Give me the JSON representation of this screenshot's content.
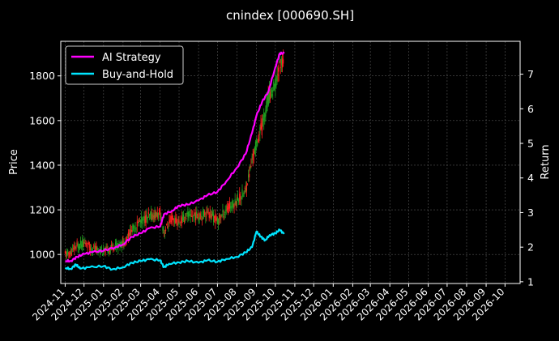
{
  "chart_data": {
    "type": "line",
    "title": "cnindex [000690.SH]",
    "ylabel": "Price",
    "y2label": "Return",
    "ylim": [
      870,
      1955
    ],
    "y2lim": [
      0.95,
      7.95
    ],
    "yticks": [
      1000,
      1200,
      1400,
      1600,
      1800
    ],
    "y2ticks": [
      1,
      2,
      3,
      4,
      5,
      6,
      7
    ],
    "xticks": [
      "2024-11",
      "2024-12",
      "2025-01",
      "2025-02",
      "2025-03",
      "2025-04",
      "2025-05",
      "2025-06",
      "2025-07",
      "2025-08",
      "2025-09",
      "2025-10",
      "2025-11",
      "2025-12",
      "2026-01",
      "2026-02",
      "2026-03",
      "2026-04",
      "2026-05",
      "2026-06",
      "2026-07",
      "2026-08",
      "2026-09",
      "2026-10"
    ],
    "xlim": [
      "2024-10-25",
      "2026-10-25"
    ],
    "grid": true,
    "legend_position": "top-left",
    "colors": {
      "background": "#000000",
      "strategy": "#ff00ff",
      "buyhold": "#00e5ff",
      "candle_up": "#ff2020",
      "candle_down": "#1fa01f",
      "grid": "#555555"
    },
    "series": [
      {
        "name": "AI Strategy",
        "axis": "return",
        "points": [
          [
            "2024-11-01",
            1.6
          ],
          [
            "2024-11-10",
            1.6
          ],
          [
            "2024-11-20",
            1.72
          ],
          [
            "2024-12-01",
            1.8
          ],
          [
            "2024-12-15",
            1.86
          ],
          [
            "2025-01-01",
            1.9
          ],
          [
            "2025-01-20",
            2.0
          ],
          [
            "2025-02-01",
            2.08
          ],
          [
            "2025-02-15",
            2.3
          ],
          [
            "2025-03-01",
            2.4
          ],
          [
            "2025-03-15",
            2.55
          ],
          [
            "2025-04-01",
            2.6
          ],
          [
            "2025-04-07",
            2.95
          ],
          [
            "2025-04-20",
            3.05
          ],
          [
            "2025-05-01",
            3.2
          ],
          [
            "2025-05-15",
            3.23
          ],
          [
            "2025-06-01",
            3.35
          ],
          [
            "2025-06-15",
            3.5
          ],
          [
            "2025-07-01",
            3.6
          ],
          [
            "2025-07-15",
            3.9
          ],
          [
            "2025-08-01",
            4.3
          ],
          [
            "2025-08-15",
            4.7
          ],
          [
            "2025-08-25",
            5.3
          ],
          [
            "2025-09-01",
            5.8
          ],
          [
            "2025-09-10",
            6.2
          ],
          [
            "2025-09-20",
            6.5
          ],
          [
            "2025-10-01",
            7.2
          ],
          [
            "2025-10-08",
            7.6
          ],
          [
            "2025-10-15",
            7.6
          ]
        ]
      },
      {
        "name": "Buy-and-Hold",
        "axis": "return",
        "points": [
          [
            "2024-11-01",
            1.4
          ],
          [
            "2024-11-10",
            1.37
          ],
          [
            "2024-11-18",
            1.5
          ],
          [
            "2024-11-25",
            1.38
          ],
          [
            "2024-12-10",
            1.42
          ],
          [
            "2025-01-01",
            1.45
          ],
          [
            "2025-01-15",
            1.36
          ],
          [
            "2025-02-01",
            1.42
          ],
          [
            "2025-02-15",
            1.55
          ],
          [
            "2025-03-01",
            1.6
          ],
          [
            "2025-03-15",
            1.65
          ],
          [
            "2025-04-01",
            1.62
          ],
          [
            "2025-04-07",
            1.42
          ],
          [
            "2025-04-15",
            1.52
          ],
          [
            "2025-05-01",
            1.56
          ],
          [
            "2025-05-15",
            1.6
          ],
          [
            "2025-06-01",
            1.55
          ],
          [
            "2025-06-15",
            1.62
          ],
          [
            "2025-07-01",
            1.58
          ],
          [
            "2025-07-15",
            1.66
          ],
          [
            "2025-08-01",
            1.72
          ],
          [
            "2025-08-15",
            1.85
          ],
          [
            "2025-08-25",
            2.0
          ],
          [
            "2025-09-01",
            2.45
          ],
          [
            "2025-09-08",
            2.3
          ],
          [
            "2025-09-15",
            2.2
          ],
          [
            "2025-09-22",
            2.35
          ],
          [
            "2025-10-01",
            2.4
          ],
          [
            "2025-10-08",
            2.5
          ],
          [
            "2025-10-15",
            2.38
          ]
        ]
      },
      {
        "name": "Price",
        "axis": "price",
        "render": "candlestick",
        "points": [
          [
            "2024-11-01",
            1000
          ],
          [
            "2024-11-10",
            1005
          ],
          [
            "2024-11-20",
            1040
          ],
          [
            "2024-12-01",
            1050
          ],
          [
            "2024-12-15",
            1030
          ],
          [
            "2025-01-01",
            1010
          ],
          [
            "2025-01-20",
            1040
          ],
          [
            "2025-02-01",
            1050
          ],
          [
            "2025-02-15",
            1110
          ],
          [
            "2025-03-01",
            1150
          ],
          [
            "2025-03-15",
            1170
          ],
          [
            "2025-04-01",
            1180
          ],
          [
            "2025-04-07",
            1100
          ],
          [
            "2025-04-20",
            1160
          ],
          [
            "2025-05-01",
            1140
          ],
          [
            "2025-05-15",
            1180
          ],
          [
            "2025-06-01",
            1170
          ],
          [
            "2025-06-15",
            1190
          ],
          [
            "2025-07-01",
            1150
          ],
          [
            "2025-07-15",
            1200
          ],
          [
            "2025-08-01",
            1240
          ],
          [
            "2025-08-15",
            1290
          ],
          [
            "2025-08-25",
            1420
          ],
          [
            "2025-09-01",
            1500
          ],
          [
            "2025-09-10",
            1580
          ],
          [
            "2025-09-20",
            1700
          ],
          [
            "2025-10-01",
            1760
          ],
          [
            "2025-10-08",
            1850
          ],
          [
            "2025-10-15",
            1880
          ]
        ]
      }
    ]
  }
}
